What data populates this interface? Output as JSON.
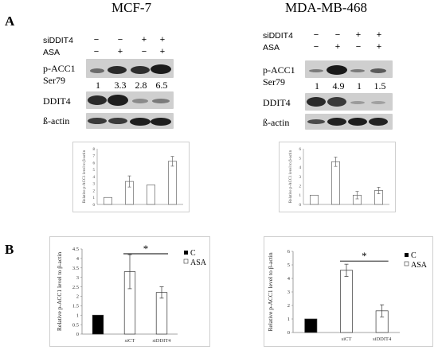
{
  "panel_labels": {
    "a": "A",
    "b": "B"
  },
  "titles": {
    "left": "MCF-7",
    "right": "MDA-MB-468"
  },
  "row_labels": {
    "siddit4": "siDDIT4",
    "asa": "ASA",
    "pacc1_line1": "p-ACC1",
    "pacc1_line2": "Ser79",
    "ddit4": "DDIT4",
    "bactin": "ß-actin"
  },
  "left_blot": {
    "siddit4_marks": [
      "−",
      "−",
      "+",
      "+"
    ],
    "asa_marks": [
      "−",
      "+",
      "−",
      "+"
    ],
    "quant": [
      "1",
      "3.3",
      "2.8",
      "6.5"
    ]
  },
  "right_blot": {
    "siddit4_marks": [
      "−",
      "−",
      "+",
      "+"
    ],
    "asa_marks": [
      "−",
      "+",
      "−",
      "+"
    ],
    "quant": [
      "1",
      "4.9",
      "1",
      "1.5"
    ]
  },
  "legend": {
    "c": "C",
    "asa": "ASA"
  },
  "significance": "*",
  "chart_data": [
    {
      "type": "bar",
      "panel": "A-left",
      "categories": [
        "siDDIT4 − ASA −",
        "siDDIT4 − ASA +",
        "siDDIT4 + ASA −",
        "siDDIT4 + ASA +"
      ],
      "values": [
        1,
        3.3,
        2.8,
        6.2
      ],
      "errors": [
        0,
        0.8,
        0,
        0.7
      ],
      "ylabel": "Relative p-ACC1 level to β-actin",
      "ylim": [
        0,
        8
      ],
      "yticks": [
        "0",
        "1",
        "2",
        "3",
        "4",
        "5",
        "6",
        "7",
        "8"
      ]
    },
    {
      "type": "bar",
      "panel": "A-right",
      "categories": [
        "siDDIT4 − ASA −",
        "siDDIT4 − ASA +",
        "siDDIT4 + ASA −",
        "siDDIT4 + ASA +"
      ],
      "values": [
        1,
        4.6,
        1,
        1.5
      ],
      "errors": [
        0,
        0.5,
        0.4,
        0.35
      ],
      "ylabel": "Relative p-ACC1 level to β-actin",
      "ylim": [
        0,
        6
      ],
      "yticks": [
        "0",
        "1",
        "2",
        "3",
        "4",
        "5",
        "6"
      ]
    },
    {
      "type": "bar",
      "panel": "B-left",
      "categories": [
        "",
        "siCT",
        "siDDIT4"
      ],
      "series": [
        {
          "name": "C",
          "values": [
            1,
            null,
            null
          ],
          "errors": [
            0,
            null,
            null
          ],
          "color": "#000000"
        },
        {
          "name": "ASA",
          "values": [
            null,
            3.3,
            2.2
          ],
          "errors": [
            null,
            0.9,
            0.3
          ],
          "color": "#ffffff"
        }
      ],
      "ylabel": "Relative p-ACC1 level to β-actin",
      "ylim": [
        0,
        4.5
      ],
      "yticks": [
        "0",
        "0.5",
        "1",
        "1.5",
        "2",
        "2.5",
        "3",
        "3.5",
        "4",
        "4.5"
      ]
    },
    {
      "type": "bar",
      "panel": "B-right",
      "categories": [
        "",
        "siCT",
        "siDDIT4"
      ],
      "series": [
        {
          "name": "C",
          "values": [
            1,
            null,
            null
          ],
          "errors": [
            0,
            null,
            null
          ],
          "color": "#000000"
        },
        {
          "name": "ASA",
          "values": [
            null,
            4.6,
            1.6
          ],
          "errors": [
            null,
            0.45,
            0.45
          ],
          "color": "#ffffff"
        }
      ],
      "ylabel": "Relative p-ACC1 level to β-actin",
      "ylim": [
        0,
        6
      ],
      "yticks": [
        "0",
        "1",
        "2",
        "3",
        "4",
        "5",
        "6"
      ]
    }
  ]
}
